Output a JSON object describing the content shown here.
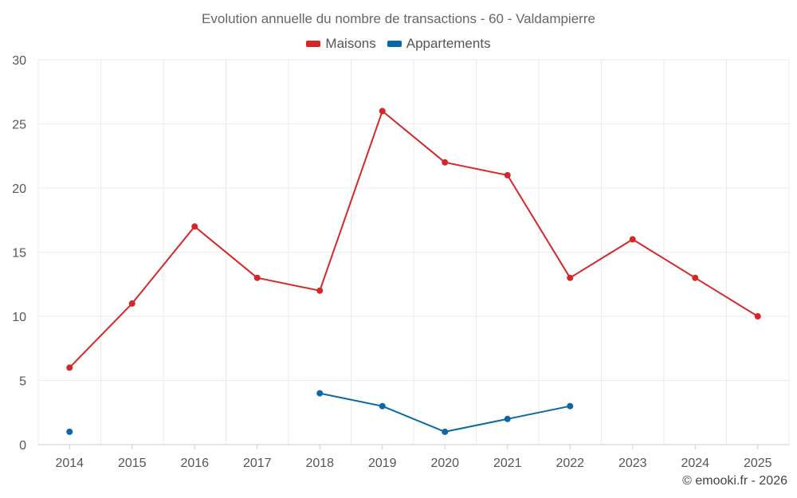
{
  "chart_data": {
    "type": "line",
    "title": "Evolution annuelle du nombre de transactions - 60 - Valdampierre",
    "categories": [
      "2014",
      "2015",
      "2016",
      "2017",
      "2018",
      "2019",
      "2020",
      "2021",
      "2022",
      "2023",
      "2024",
      "2025"
    ],
    "series": [
      {
        "name": "Maisons",
        "color": "#d62728",
        "values": [
          6,
          11,
          17,
          13,
          12,
          26,
          22,
          21,
          13,
          16,
          13,
          10
        ]
      },
      {
        "name": "Appartements",
        "color": "#0868a8",
        "values": [
          1,
          null,
          null,
          null,
          4,
          3,
          1,
          2,
          3,
          null,
          null,
          null
        ]
      }
    ],
    "ylim": [
      0,
      30
    ],
    "yticks": [
      0,
      5,
      10,
      15,
      20,
      25,
      30
    ],
    "grid": true,
    "legend": "top-center",
    "xlabel": "",
    "ylabel": ""
  },
  "credit": "© emooki.fr - 2026"
}
